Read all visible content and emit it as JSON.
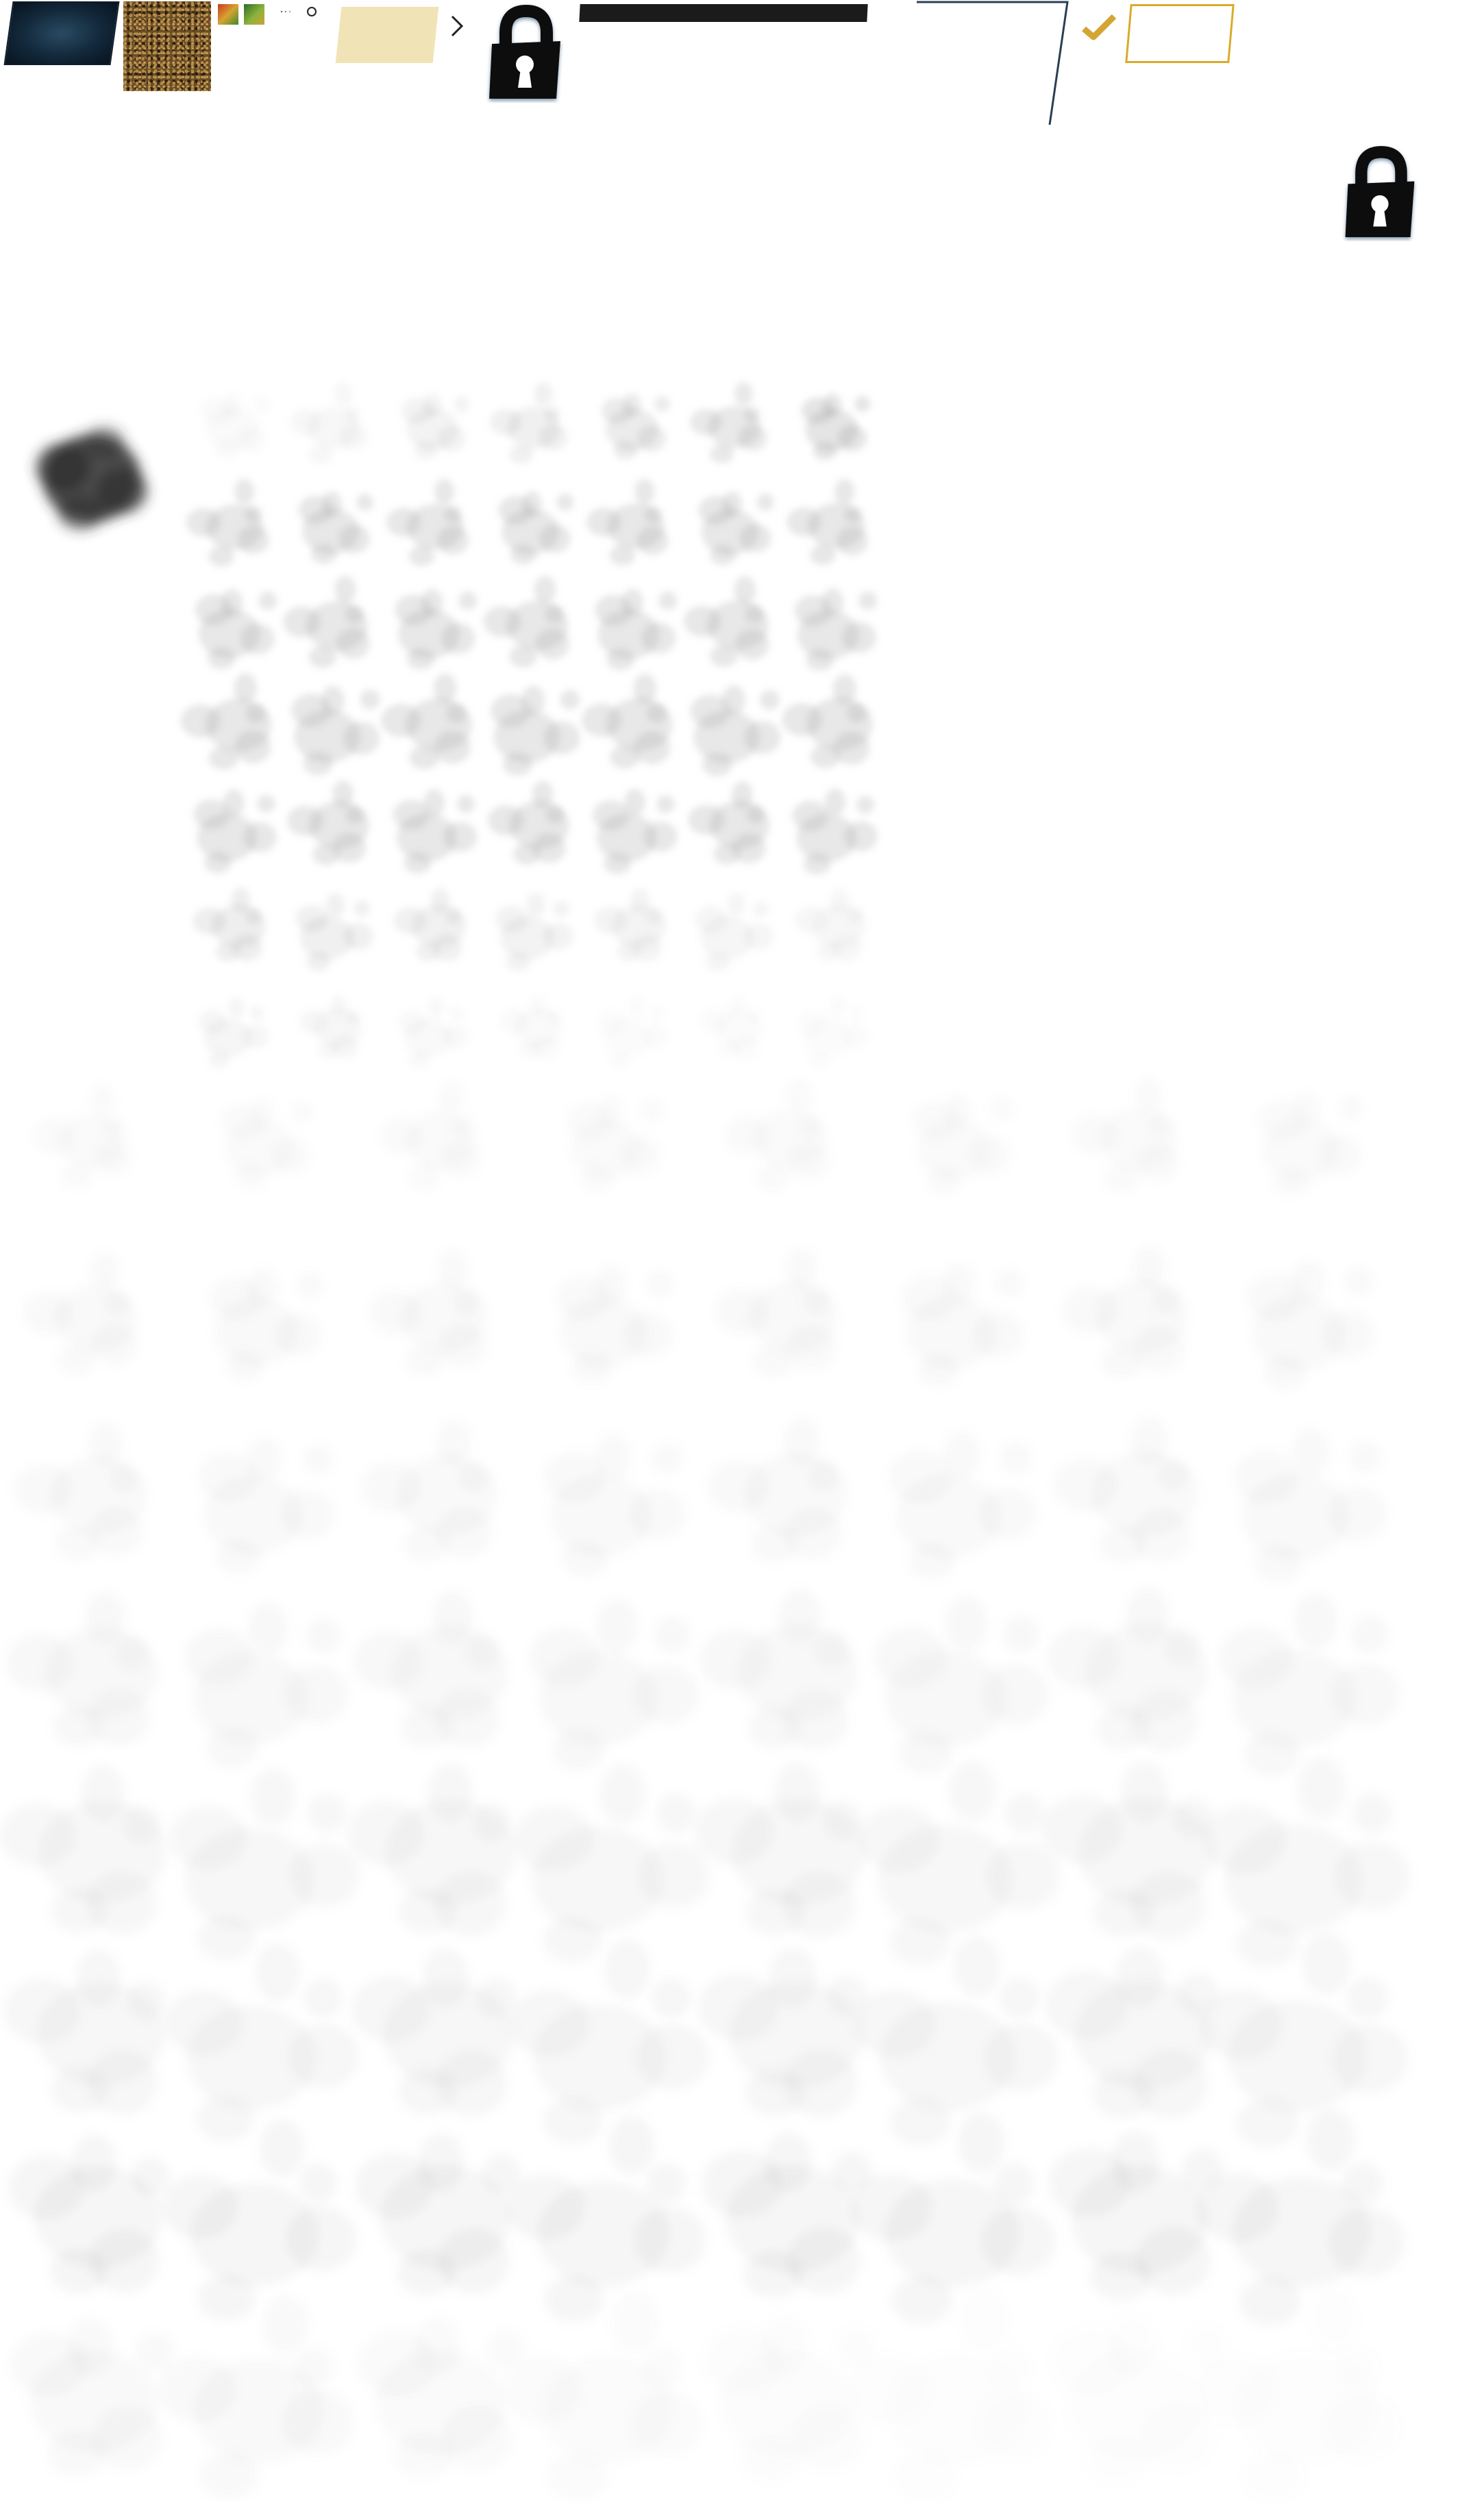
{
  "sprite_sheet": {
    "assets": [
      {
        "name": "dark-blue-panel",
        "color": "#12283a"
      },
      {
        "name": "speckled-texture",
        "color": "#6b4e26"
      },
      {
        "name": "red-green-swatch",
        "colors": [
          "#c83a1e",
          "#d7a332",
          "#3f8a2c"
        ]
      },
      {
        "name": "green-swatch",
        "colors": [
          "#2d6d2a",
          "#8bb33b"
        ]
      },
      {
        "name": "parchment-panel",
        "color": "#f0e4b6"
      },
      {
        "name": "dark-bar",
        "color": "#1b1b1b"
      },
      {
        "name": "outline-bracket",
        "color": "#2c3e55"
      },
      {
        "name": "gold-frame",
        "color": "#d9ab2a"
      }
    ],
    "icons": [
      "lock-icon",
      "check-icon",
      "ring-icon",
      "caret-icon"
    ],
    "smoke_grid_small": {
      "rows": 7,
      "cols": 7,
      "color": "#8a8a8a"
    },
    "smoke_grid_large": {
      "rows": 8,
      "cols": 8,
      "color": "#9a9a9a"
    },
    "smoke_main": {
      "color": "#2e2e2e"
    }
  }
}
